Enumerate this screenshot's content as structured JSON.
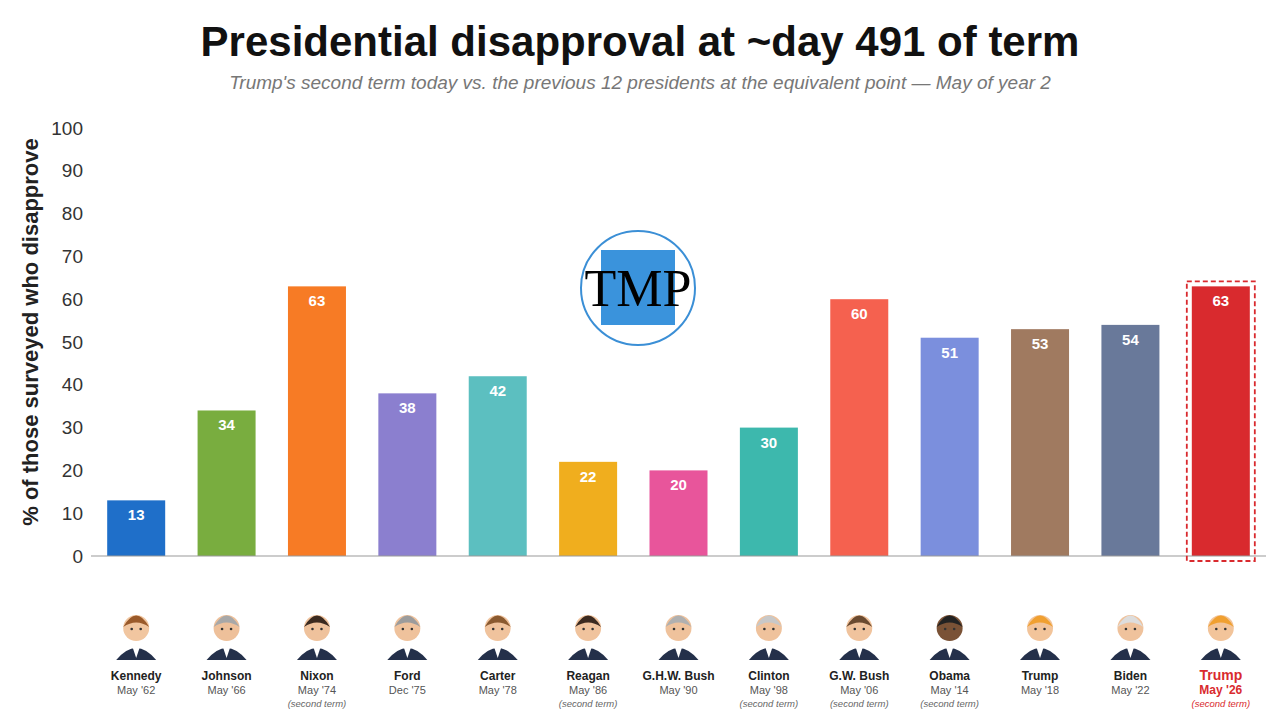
{
  "chart_data": {
    "type": "bar",
    "title": "Presidential disapproval at ~day 491 of term",
    "subtitle": "Trump's second term today vs. the previous 12 presidents at the equivalent point — May of year 2",
    "y_label": "% of those surveyed who disapprove",
    "annotations": [
      "TMP"
    ],
    "categories": [
      "Kennedy",
      "Johnson",
      "Nixon",
      "Ford",
      "Carter",
      "Reagan",
      "G.H.W. Bush",
      "Clinton",
      "G.W. Bush",
      "Obama",
      "Trump",
      "Biden",
      "Trump"
    ],
    "category_dates": [
      "May '62",
      "May '66",
      "May '74",
      "Dec '75",
      "May '78",
      "May '86",
      "May '90",
      "May '98",
      "May '06",
      "May '14",
      "May '18",
      "May '22",
      "May '26"
    ],
    "category_notes": [
      null,
      null,
      "(second term)",
      null,
      null,
      "(second term)",
      null,
      "(second term)",
      "(second term)",
      "(second term)",
      null,
      null,
      "(second term)"
    ],
    "values": [
      13,
      34,
      63,
      38,
      42,
      22,
      20,
      30,
      60,
      51,
      53,
      54,
      63
    ],
    "colors": [
      "#1f6fc9",
      "#79ad3f",
      "#f77b25",
      "#8b7fcf",
      "#5cbfc0",
      "#f0ae1e",
      "#e8559b",
      "#3db8ad",
      "#f5614f",
      "#7b8fdd",
      "#a07a60",
      "#69799a",
      "#d92a2e"
    ],
    "ylim": [
      0,
      100
    ],
    "yticks": [
      0,
      10,
      20,
      30,
      40,
      50,
      60,
      70,
      80,
      90,
      100
    ],
    "grid": false,
    "data_labels": true
  }
}
